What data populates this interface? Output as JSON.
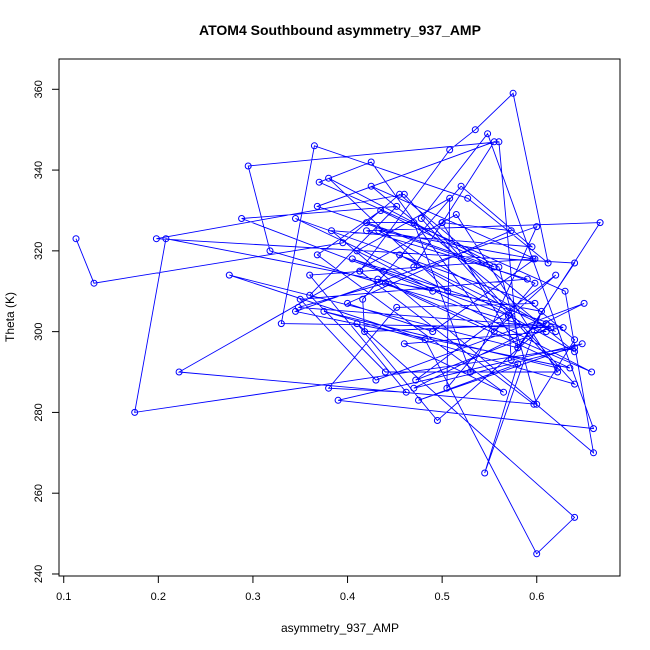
{
  "chart_data": {
    "type": "line",
    "title": "ATOM4 Southbound asymmetry_937_AMP",
    "xlabel": "asymmetry_937_AMP",
    "ylabel": "Theta (K)",
    "xlim": [
      0.095,
      0.688
    ],
    "ylim": [
      239.5,
      367.5
    ],
    "x_ticks": [
      0.1,
      0.2,
      0.3,
      0.4,
      0.5,
      0.6
    ],
    "x_tick_labels": [
      "0.1",
      "0.2",
      "0.3",
      "0.4",
      "0.5",
      "0.6"
    ],
    "y_ticks": [
      240,
      260,
      280,
      300,
      320,
      340,
      360
    ],
    "y_tick_labels": [
      "240",
      "260",
      "280",
      "300",
      "320",
      "340",
      "360"
    ],
    "grid": false,
    "legend": "none",
    "series": [
      {
        "color": "#0000ff",
        "marker": "open-circle",
        "x": [
          0.113,
          0.132,
          0.395,
          0.455,
          0.64,
          0.597,
          0.413,
          0.508,
          0.535,
          0.575,
          0.612,
          0.527,
          0.365,
          0.33,
          0.615,
          0.472,
          0.62,
          0.555,
          0.425,
          0.37,
          0.63,
          0.66,
          0.383,
          0.595,
          0.52,
          0.416,
          0.418,
          0.61,
          0.495,
          0.41,
          0.64,
          0.6,
          0.482,
          0.275,
          0.58,
          0.56,
          0.295,
          0.318,
          0.61,
          0.46,
          0.565,
          0.368,
          0.435,
          0.555,
          0.42,
          0.47,
          0.53,
          0.6,
          0.345,
          0.635,
          0.44,
          0.348,
          0.628,
          0.405,
          0.438,
          0.57,
          0.573,
          0.667,
          0.42,
          0.59,
          0.35,
          0.43,
          0.65,
          0.47,
          0.64,
          0.175,
          0.208,
          0.605,
          0.545,
          0.58,
          0.475,
          0.648,
          0.39,
          0.66,
          0.548,
          0.478,
          0.622,
          0.375,
          0.64,
          0.46,
          0.198,
          0.64,
          0.58,
          0.5,
          0.47,
          0.555,
          0.368,
          0.598,
          0.505,
          0.508,
          0.41,
          0.658,
          0.432,
          0.49,
          0.288,
          0.452,
          0.36,
          0.44,
          0.622,
          0.515,
          0.222,
          0.6,
          0.56,
          0.38,
          0.506,
          0.345,
          0.598,
          0.452,
          0.38,
          0.462,
          0.36,
          0.596,
          0.433,
          0.62,
          0.455,
          0.64,
          0.425,
          0.598,
          0.49,
          0.4,
          0.573,
          0.5
        ],
        "y": [
          323,
          312,
          322,
          334,
          298,
          282,
          315,
          345,
          350,
          359,
          317,
          333,
          346,
          302,
          301,
          288,
          314,
          300,
          342,
          337,
          310,
          270,
          325,
          321,
          336,
          308,
          300,
          302,
          278,
          302,
          254,
          245,
          298,
          314,
          296,
          347,
          341,
          320,
          300,
          297,
          285,
          319,
          330,
          316,
          327,
          327,
          290,
          326,
          305,
          291,
          312,
          306,
          301,
          318,
          315,
          304,
          293,
          327,
          325,
          313,
          308,
          288,
          307,
          286,
          296,
          280,
          323,
          305,
          265,
          292,
          283,
          297,
          283,
          276,
          349,
          328,
          291,
          305,
          287,
          334,
          323,
          317,
          296,
          327,
          316,
          347,
          331,
          312,
          286,
          333,
          320,
          290,
          313,
          310,
          328,
          331,
          309,
          290,
          290,
          329,
          290,
          282,
          316,
          338,
          310,
          328,
          307,
          306,
          286,
          285,
          314,
          318,
          325,
          300,
          319,
          295,
          336,
          318,
          300,
          307,
          325,
          327
        ]
      }
    ]
  }
}
